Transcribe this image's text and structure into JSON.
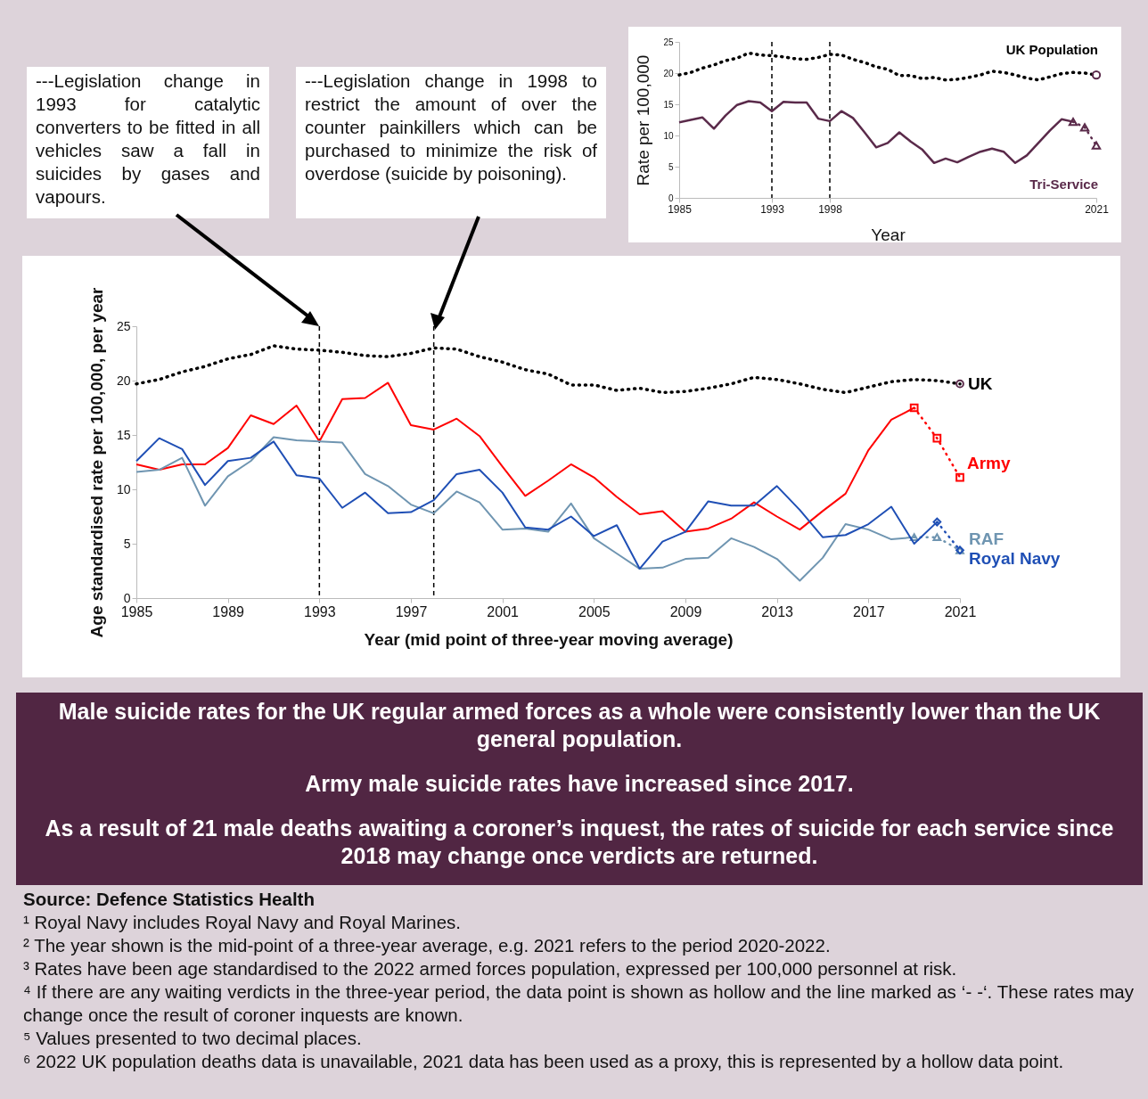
{
  "chart_data": [
    {
      "type": "line",
      "xlabel": "Year",
      "ylabel": "Rate per 100,000",
      "x": [
        1985,
        1986,
        1987,
        1988,
        1989,
        1990,
        1991,
        1992,
        1993,
        1994,
        1995,
        1996,
        1997,
        1998,
        1999,
        2000,
        2001,
        2002,
        2003,
        2004,
        2005,
        2006,
        2007,
        2008,
        2009,
        2010,
        2011,
        2012,
        2013,
        2014,
        2015,
        2016,
        2017,
        2018,
        2019,
        2020,
        2021
      ],
      "xlim": [
        1985,
        2021
      ],
      "xticks": [
        1985,
        1993,
        1998,
        2021
      ],
      "ylim": [
        0,
        25
      ],
      "yticks": [
        0,
        5,
        10,
        15,
        20,
        25
      ],
      "grid": false,
      "series": [
        {
          "name": "UK Population",
          "color": "#000000",
          "line_style": "dotted",
          "values": [
            19.7,
            20.1,
            20.8,
            21.3,
            22.0,
            22.4,
            23.2,
            22.9,
            22.8,
            22.6,
            22.3,
            22.2,
            22.5,
            23.0,
            22.9,
            22.2,
            21.7,
            21.0,
            20.6,
            19.6,
            19.6,
            19.1,
            19.3,
            18.9,
            19.0,
            19.3,
            19.7,
            20.3,
            20.1,
            19.7,
            19.2,
            18.9,
            19.4,
            19.9,
            20.1,
            20.0,
            19.7
          ]
        },
        {
          "type": "scatter",
          "color": "#5a2a4a",
          "marker": "circle",
          "x": [
            2021
          ],
          "values": [
            19.7
          ]
        },
        {
          "color": "#5a2a4a",
          "line_style": "solid",
          "values": [
            12.1,
            12.5,
            12.9,
            11.1,
            13.2,
            14.9,
            15.5,
            15.3,
            13.9,
            15.4,
            15.3,
            15.3,
            12.7,
            12.3,
            13.9,
            12.8,
            10.5,
            8.1,
            8.8,
            10.5,
            9.0,
            7.7,
            5.6,
            6.3,
            5.7,
            6.6,
            7.4,
            7.9,
            7.4,
            5.6,
            6.8,
            8.8,
            10.8,
            12.6,
            12.2,
            null,
            null
          ]
        },
        {
          "name": "Tri-Service",
          "color": "#5a2a4a",
          "line_style": "dotted",
          "marker": "triangle",
          "x": [
            2019,
            2020,
            2021
          ],
          "values": [
            12.2,
            11.3,
            8.4
          ]
        }
      ],
      "ref_lines": [
        {
          "axis": "x",
          "value": 1993,
          "line_style": "dashed",
          "color": "#000000"
        },
        {
          "axis": "x",
          "value": 1998,
          "line_style": "dashed",
          "color": "#000000"
        }
      ]
    },
    {
      "type": "line",
      "xlabel": "Year (mid point of three-year moving average)",
      "ylabel": "Age standardised rate per 100,000, per year",
      "x": [
        1985,
        1986,
        1987,
        1988,
        1989,
        1990,
        1991,
        1992,
        1993,
        1994,
        1995,
        1996,
        1997,
        1998,
        1999,
        2000,
        2001,
        2002,
        2003,
        2004,
        2005,
        2006,
        2007,
        2008,
        2009,
        2010,
        2011,
        2012,
        2013,
        2014,
        2015,
        2016,
        2017,
        2018,
        2019,
        2020,
        2021
      ],
      "xlim": [
        1985,
        2021
      ],
      "xticks": [
        1985,
        1989,
        1993,
        1997,
        2001,
        2005,
        2009,
        2013,
        2017,
        2021
      ],
      "ylim": [
        0,
        25
      ],
      "yticks": [
        0,
        5,
        10,
        15,
        20,
        25
      ],
      "grid": false,
      "series": [
        {
          "name": "UK",
          "color": "#000000",
          "line_style": "dotted",
          "values": [
            19.7,
            20.1,
            20.8,
            21.3,
            22.0,
            22.4,
            23.2,
            22.9,
            22.8,
            22.6,
            22.3,
            22.2,
            22.5,
            23.0,
            22.9,
            22.2,
            21.7,
            21.0,
            20.6,
            19.6,
            19.6,
            19.1,
            19.3,
            18.9,
            19.0,
            19.3,
            19.7,
            20.3,
            20.1,
            19.7,
            19.2,
            18.9,
            19.4,
            19.9,
            20.1,
            20.0,
            19.7
          ]
        },
        {
          "type": "scatter",
          "color": "#5a2a4a",
          "marker": "circle",
          "x": [
            2021
          ],
          "values": [
            19.7
          ]
        },
        {
          "color": "#ff0000",
          "line_style": "solid",
          "values": [
            12.3,
            11.8,
            12.3,
            12.3,
            13.8,
            16.8,
            16.0,
            17.7,
            14.4,
            18.3,
            18.4,
            19.8,
            15.9,
            15.5,
            16.5,
            14.9,
            12.1,
            9.4,
            10.8,
            12.3,
            11.1,
            9.3,
            7.7,
            8.0,
            6.1,
            6.4,
            7.3,
            8.8,
            7.5,
            6.3,
            8.0,
            9.6,
            13.6,
            16.4,
            17.5,
            null,
            null
          ]
        },
        {
          "name": "Army",
          "color": "#ff0000",
          "line_style": "dotted",
          "marker": "square",
          "x": [
            2019,
            2020,
            2021
          ],
          "values": [
            17.5,
            14.7,
            11.1
          ]
        },
        {
          "color": "#6f95b1",
          "line_style": "solid",
          "values": [
            11.6,
            11.8,
            12.9,
            8.5,
            11.2,
            12.6,
            14.8,
            14.5,
            14.4,
            14.3,
            11.4,
            10.3,
            8.6,
            7.8,
            9.8,
            8.8,
            6.3,
            6.4,
            6.1,
            8.7,
            5.5,
            4.1,
            2.7,
            2.8,
            3.6,
            3.7,
            5.5,
            4.7,
            3.6,
            1.6,
            3.7,
            6.8,
            6.3,
            5.4,
            5.6,
            null,
            null
          ]
        },
        {
          "name": "RAF",
          "color": "#6f95b1",
          "line_style": "dotted",
          "marker": "triangle",
          "x": [
            2019,
            2020,
            2021
          ],
          "values": [
            5.6,
            5.6,
            4.4
          ]
        },
        {
          "color": "#1f4fb5",
          "line_style": "solid",
          "values": [
            12.6,
            14.7,
            13.7,
            10.4,
            12.6,
            12.9,
            14.4,
            11.3,
            11.0,
            8.3,
            9.7,
            7.8,
            7.9,
            9.0,
            11.4,
            11.8,
            9.7,
            6.5,
            6.3,
            7.5,
            5.7,
            6.7,
            2.7,
            5.2,
            6.1,
            8.9,
            8.5,
            8.5,
            10.3,
            8.1,
            5.6,
            5.8,
            6.8,
            8.4,
            5.0,
            7.0,
            null
          ]
        },
        {
          "name": "Royal Navy",
          "color": "#1f4fb5",
          "line_style": "dotted",
          "marker": "diamond",
          "x": [
            2020,
            2021
          ],
          "values": [
            7.0,
            4.4
          ]
        }
      ],
      "ref_lines": [
        {
          "axis": "x",
          "value": 1993,
          "line_style": "dashed",
          "color": "#000000"
        },
        {
          "axis": "x",
          "value": 1998,
          "line_style": "dashed",
          "color": "#000000"
        }
      ],
      "annotations": [
        "---Legislation change in 1993 for catalytic converters to be fitted in all vehicles saw a fall in suicides by gases and vapours.",
        "---Legislation change in 1998 to restrict the amount of over the counter painkillers which can be purchased to minimize the risk of overdose (suicide by poisoning).",
        "Male suicide rates for the UK regular armed forces as a whole were consistently lower than the UK general population.",
        "Army male suicide rates have increased since 2017.",
        "As a result of 21 male deaths awaiting a coroner’s inquest, the rates of suicide for each service since 2018 may change once verdicts are returned.",
        "Source: Defence Statistics Health",
        "¹ Royal Navy includes Royal Navy and Royal Marines.",
        "² The year shown is the mid-point of a three-year average, e.g. 2021 refers to the period 2020-2022.",
        "³ Rates have been age standardised to the 2022 armed forces population, expressed per 100,000 personnel at risk.",
        "⁴ If there are any waiting verdicts in the three-year period, the data point is shown as hollow and the line marked as ‘- -‘. These rates may change once the result of coroner inquests are known.",
        "⁵ Values presented to two decimal places.",
        "⁶ 2022 UK population deaths data is unavailable, 2021 data has been used as a proxy, this is represented by a hollow data point."
      ]
    }
  ]
}
